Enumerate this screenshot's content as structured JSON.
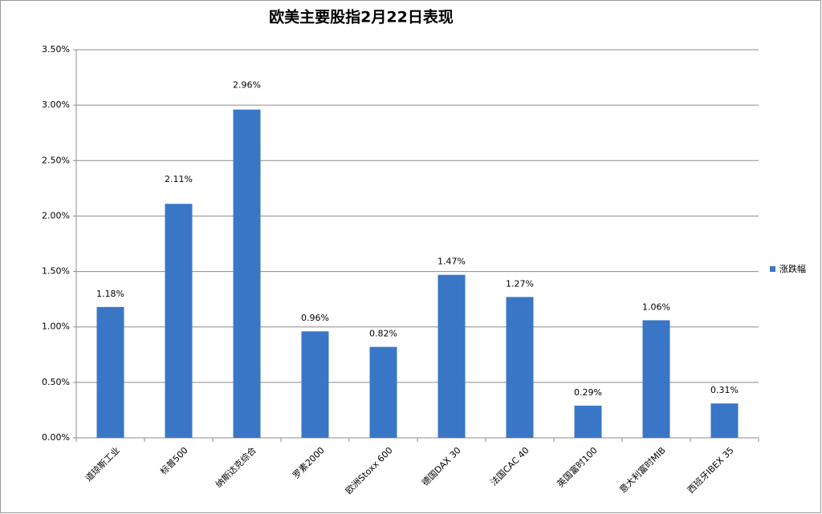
{
  "chart_data": {
    "type": "bar",
    "title": "欧美主要股指2月22日表现",
    "categories": [
      "道琼斯工业",
      "标普500",
      "纳斯达克综合",
      "罗素2000",
      "欧洲Stoxx 600",
      "德国DAX 30",
      "法国CAC 40",
      "英国富时100",
      "意大利富时MIB",
      "西班牙IBEX 35"
    ],
    "series": [
      {
        "name": "涨跌幅",
        "color": "#3a76c6",
        "values": [
          1.18,
          2.11,
          2.96,
          0.96,
          0.82,
          1.47,
          1.27,
          0.29,
          1.06,
          0.31
        ],
        "value_labels": [
          "1.18%",
          "2.11%",
          "2.96%",
          "0.96%",
          "0.82%",
          "1.47%",
          "1.27%",
          "0.29%",
          "1.06%",
          "0.31%"
        ]
      }
    ],
    "ylim": [
      0,
      3.5
    ],
    "yticks": [
      {
        "value": 0,
        "label": "0.00%"
      },
      {
        "value": 0.5,
        "label": "0.50%"
      },
      {
        "value": 1,
        "label": "1.00%"
      },
      {
        "value": 1.5,
        "label": "1.50%"
      },
      {
        "value": 2,
        "label": "2.00%"
      },
      {
        "value": 2.5,
        "label": "2.50%"
      },
      {
        "value": 3,
        "label": "3.00%"
      },
      {
        "value": 3.5,
        "label": "3.50%"
      }
    ],
    "grid": true,
    "legend": "right"
  }
}
